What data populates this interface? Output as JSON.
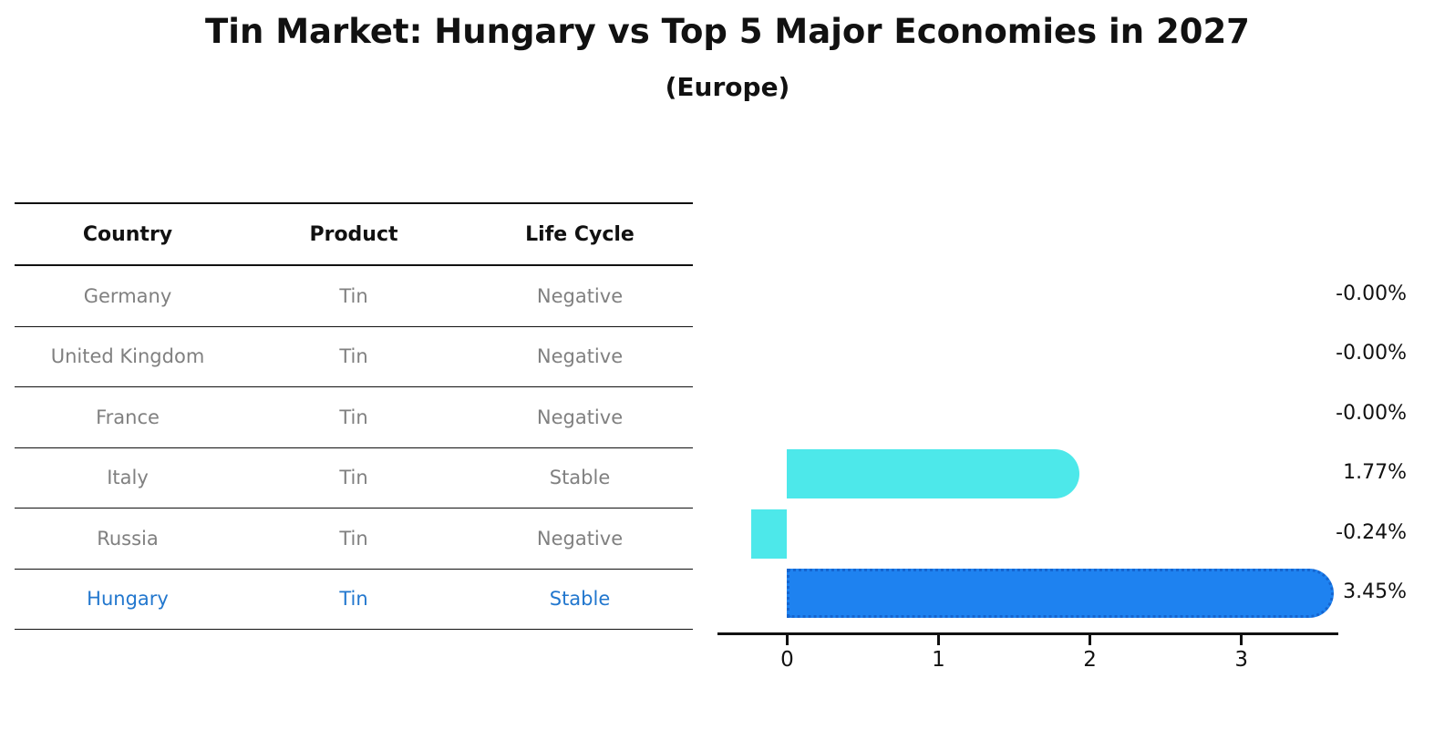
{
  "title": "Tin Market: Hungary vs Top 5 Major Economies in 2027",
  "subtitle": "(Europe)",
  "table": {
    "headers": [
      "Country",
      "Product",
      "Life Cycle"
    ],
    "rows": [
      {
        "country": "Germany",
        "product": "Tin",
        "life_cycle": "Negative",
        "highlighted": false
      },
      {
        "country": "United Kingdom",
        "product": "Tin",
        "life_cycle": "Negative",
        "highlighted": false
      },
      {
        "country": "France",
        "product": "Tin",
        "life_cycle": "Negative",
        "highlighted": false
      },
      {
        "country": "Italy",
        "product": "Tin",
        "life_cycle": "Stable",
        "highlighted": false
      },
      {
        "country": "Russia",
        "product": "Tin",
        "life_cycle": "Negative",
        "highlighted": false
      },
      {
        "country": "Hungary",
        "product": "Tin",
        "life_cycle": "Stable",
        "highlighted": true
      }
    ]
  },
  "chart_data": {
    "type": "bar",
    "orientation": "horizontal",
    "title": "Tin Market: Hungary vs Top 5 Major Economies in 2027",
    "subtitle": "(Europe)",
    "categories": [
      "Germany",
      "United Kingdom",
      "France",
      "Italy",
      "Russia",
      "Hungary"
    ],
    "values": [
      -0.0,
      -0.0,
      -0.0,
      1.77,
      -0.24,
      3.45
    ],
    "value_labels": [
      "-0.00%",
      "-0.00%",
      "-0.00%",
      "1.77%",
      "-0.24%",
      "3.45%"
    ],
    "xticks": [
      0,
      1,
      2,
      3
    ],
    "xtick_labels": [
      "0",
      "1",
      "2",
      "3"
    ],
    "xlim": [
      -0.46,
      3.64
    ],
    "xlabel": "",
    "ylabel": "",
    "grid": false,
    "legend": false,
    "highlight_index": 5,
    "bar_color_default": "#4DE8EA",
    "bar_color_highlight": "#1E82F0",
    "highlight_border_color": "#1565D0"
  },
  "colors": {
    "table_text": "#808080",
    "header_text": "#111111",
    "highlight_text": "#2277CE",
    "axis": "#111111",
    "background": "#ffffff"
  }
}
